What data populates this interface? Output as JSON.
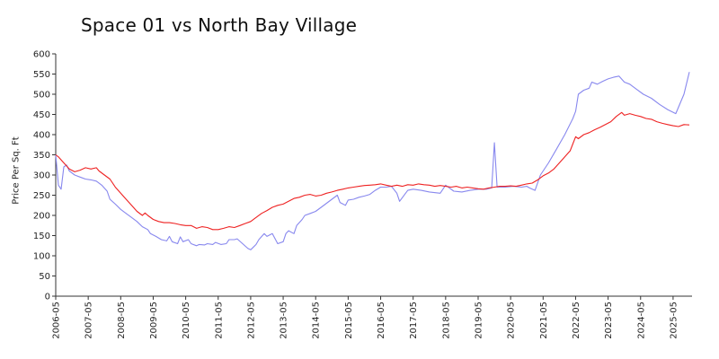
{
  "chart_data": {
    "type": "line",
    "title": "Space 01 vs North Bay Village",
    "xlabel": "",
    "ylabel": "Price Per Sq. Ft",
    "ylim": [
      0,
      600
    ],
    "yticks": [
      0,
      50,
      100,
      150,
      200,
      250,
      300,
      350,
      400,
      450,
      500,
      550,
      600
    ],
    "xlim": [
      "2006-05",
      "2025-12"
    ],
    "xticks": [
      "2006-05",
      "2007-05",
      "2008-05",
      "2009-05",
      "2010-05",
      "2011-05",
      "2012-05",
      "2013-05",
      "2014-05",
      "2015-05",
      "2016-05",
      "2017-05",
      "2018-05",
      "2019-05",
      "2020-05",
      "2021-05",
      "2022-05",
      "2023-05",
      "2024-05",
      "2025-05"
    ],
    "grid": false,
    "series": [
      {
        "color": "#8888ee",
        "points": [
          [
            "2006-05",
            350
          ],
          [
            "2006-06",
            275
          ],
          [
            "2006-07",
            265
          ],
          [
            "2006-08",
            320
          ],
          [
            "2006-09",
            325
          ],
          [
            "2006-10",
            310
          ],
          [
            "2006-12",
            300
          ],
          [
            "2007-02",
            295
          ],
          [
            "2007-04",
            290
          ],
          [
            "2007-06",
            288
          ],
          [
            "2007-08",
            285
          ],
          [
            "2007-10",
            275
          ],
          [
            "2007-12",
            260
          ],
          [
            "2008-01",
            240
          ],
          [
            "2008-03",
            228
          ],
          [
            "2008-05",
            215
          ],
          [
            "2008-07",
            205
          ],
          [
            "2008-09",
            195
          ],
          [
            "2008-11",
            185
          ],
          [
            "2009-01",
            172
          ],
          [
            "2009-03",
            165
          ],
          [
            "2009-04",
            155
          ],
          [
            "2009-06",
            148
          ],
          [
            "2009-08",
            140
          ],
          [
            "2009-10",
            137
          ],
          [
            "2009-11",
            148
          ],
          [
            "2009-12",
            135
          ],
          [
            "2010-02",
            130
          ],
          [
            "2010-03",
            147
          ],
          [
            "2010-04",
            135
          ],
          [
            "2010-06",
            140
          ],
          [
            "2010-07",
            130
          ],
          [
            "2010-09",
            125
          ],
          [
            "2010-10",
            128
          ],
          [
            "2010-12",
            127
          ],
          [
            "2011-01",
            130
          ],
          [
            "2011-03",
            128
          ],
          [
            "2011-04",
            133
          ],
          [
            "2011-06",
            128
          ],
          [
            "2011-08",
            130
          ],
          [
            "2011-09",
            140
          ],
          [
            "2011-11",
            140
          ],
          [
            "2011-12",
            142
          ],
          [
            "2012-02",
            130
          ],
          [
            "2012-04",
            118
          ],
          [
            "2012-05",
            115
          ],
          [
            "2012-07",
            128
          ],
          [
            "2012-08",
            140
          ],
          [
            "2012-10",
            155
          ],
          [
            "2012-11",
            148
          ],
          [
            "2013-01",
            155
          ],
          [
            "2013-03",
            130
          ],
          [
            "2013-05",
            135
          ],
          [
            "2013-06",
            155
          ],
          [
            "2013-07",
            162
          ],
          [
            "2013-09",
            155
          ],
          [
            "2013-10",
            175
          ],
          [
            "2013-12",
            190
          ],
          [
            "2014-01",
            200
          ],
          [
            "2014-03",
            205
          ],
          [
            "2014-05",
            210
          ],
          [
            "2014-07",
            220
          ],
          [
            "2014-09",
            230
          ],
          [
            "2014-11",
            240
          ],
          [
            "2015-01",
            250
          ],
          [
            "2015-02",
            232
          ],
          [
            "2015-04",
            225
          ],
          [
            "2015-05",
            238
          ],
          [
            "2015-07",
            240
          ],
          [
            "2015-09",
            245
          ],
          [
            "2015-11",
            248
          ],
          [
            "2016-01",
            252
          ],
          [
            "2016-03",
            262
          ],
          [
            "2016-05",
            270
          ],
          [
            "2016-07",
            270
          ],
          [
            "2016-09",
            272
          ],
          [
            "2016-11",
            255
          ],
          [
            "2016-12",
            235
          ],
          [
            "2017-03",
            262
          ],
          [
            "2017-05",
            265
          ],
          [
            "2017-08",
            262
          ],
          [
            "2017-11",
            258
          ],
          [
            "2018-03",
            255
          ],
          [
            "2018-05",
            275
          ],
          [
            "2018-08",
            260
          ],
          [
            "2018-11",
            258
          ],
          [
            "2019-02",
            262
          ],
          [
            "2019-05",
            265
          ],
          [
            "2019-08",
            265
          ],
          [
            "2019-10",
            268
          ],
          [
            "2019-11",
            380
          ],
          [
            "2019-12",
            270
          ],
          [
            "2020-03",
            270
          ],
          [
            "2020-06",
            272
          ],
          [
            "2020-09",
            270
          ],
          [
            "2020-11",
            272
          ],
          [
            "2020-12",
            268
          ],
          [
            "2021-02",
            262
          ],
          [
            "2021-04",
            300
          ],
          [
            "2021-07",
            330
          ],
          [
            "2021-10",
            365
          ],
          [
            "2022-01",
            400
          ],
          [
            "2022-04",
            440
          ],
          [
            "2022-05",
            458
          ],
          [
            "2022-06",
            500
          ],
          [
            "2022-08",
            510
          ],
          [
            "2022-10",
            515
          ],
          [
            "2022-11",
            530
          ],
          [
            "2023-01",
            525
          ],
          [
            "2023-03",
            532
          ],
          [
            "2023-05",
            538
          ],
          [
            "2023-07",
            542
          ],
          [
            "2023-09",
            545
          ],
          [
            "2023-11",
            530
          ],
          [
            "2024-01",
            525
          ],
          [
            "2024-03",
            515
          ],
          [
            "2024-06",
            500
          ],
          [
            "2024-09",
            490
          ],
          [
            "2024-12",
            475
          ],
          [
            "2025-03",
            462
          ],
          [
            "2025-06",
            452
          ],
          [
            "2025-09",
            500
          ],
          [
            "2025-11",
            555
          ]
        ]
      },
      {
        "color": "#ee2222",
        "points": [
          [
            "2006-05",
            350
          ],
          [
            "2006-06",
            345
          ],
          [
            "2006-08",
            330
          ],
          [
            "2006-10",
            315
          ],
          [
            "2006-12",
            308
          ],
          [
            "2007-02",
            312
          ],
          [
            "2007-04",
            318
          ],
          [
            "2007-06",
            315
          ],
          [
            "2007-08",
            318
          ],
          [
            "2007-09",
            310
          ],
          [
            "2007-11",
            300
          ],
          [
            "2008-01",
            290
          ],
          [
            "2008-03",
            270
          ],
          [
            "2008-05",
            255
          ],
          [
            "2008-07",
            240
          ],
          [
            "2008-09",
            225
          ],
          [
            "2008-11",
            210
          ],
          [
            "2009-01",
            200
          ],
          [
            "2009-02",
            206
          ],
          [
            "2009-03",
            200
          ],
          [
            "2009-05",
            190
          ],
          [
            "2009-07",
            185
          ],
          [
            "2009-09",
            182
          ],
          [
            "2009-11",
            182
          ],
          [
            "2010-01",
            180
          ],
          [
            "2010-03",
            177
          ],
          [
            "2010-05",
            175
          ],
          [
            "2010-07",
            175
          ],
          [
            "2010-09",
            168
          ],
          [
            "2010-11",
            172
          ],
          [
            "2011-01",
            170
          ],
          [
            "2011-03",
            165
          ],
          [
            "2011-05",
            165
          ],
          [
            "2011-07",
            168
          ],
          [
            "2011-09",
            172
          ],
          [
            "2011-11",
            170
          ],
          [
            "2012-01",
            175
          ],
          [
            "2012-03",
            180
          ],
          [
            "2012-05",
            185
          ],
          [
            "2012-07",
            195
          ],
          [
            "2012-09",
            205
          ],
          [
            "2012-11",
            212
          ],
          [
            "2013-01",
            220
          ],
          [
            "2013-03",
            225
          ],
          [
            "2013-05",
            228
          ],
          [
            "2013-07",
            235
          ],
          [
            "2013-09",
            242
          ],
          [
            "2013-11",
            245
          ],
          [
            "2014-01",
            250
          ],
          [
            "2014-03",
            252
          ],
          [
            "2014-05",
            248
          ],
          [
            "2014-07",
            250
          ],
          [
            "2014-09",
            255
          ],
          [
            "2014-11",
            258
          ],
          [
            "2015-01",
            262
          ],
          [
            "2015-03",
            265
          ],
          [
            "2015-05",
            268
          ],
          [
            "2015-07",
            270
          ],
          [
            "2015-09",
            272
          ],
          [
            "2015-11",
            274
          ],
          [
            "2016-01",
            275
          ],
          [
            "2016-03",
            276
          ],
          [
            "2016-05",
            278
          ],
          [
            "2016-07",
            275
          ],
          [
            "2016-09",
            272
          ],
          [
            "2016-11",
            275
          ],
          [
            "2017-01",
            272
          ],
          [
            "2017-03",
            276
          ],
          [
            "2017-05",
            275
          ],
          [
            "2017-07",
            278
          ],
          [
            "2017-09",
            276
          ],
          [
            "2017-11",
            275
          ],
          [
            "2018-01",
            272
          ],
          [
            "2018-03",
            274
          ],
          [
            "2018-05",
            272
          ],
          [
            "2018-07",
            270
          ],
          [
            "2018-09",
            272
          ],
          [
            "2018-11",
            268
          ],
          [
            "2019-01",
            270
          ],
          [
            "2019-03",
            268
          ],
          [
            "2019-05",
            266
          ],
          [
            "2019-07",
            265
          ],
          [
            "2019-09",
            268
          ],
          [
            "2019-11",
            270
          ],
          [
            "2020-01",
            272
          ],
          [
            "2020-03",
            272
          ],
          [
            "2020-05",
            273
          ],
          [
            "2020-07",
            272
          ],
          [
            "2020-09",
            275
          ],
          [
            "2020-11",
            278
          ],
          [
            "2021-01",
            280
          ],
          [
            "2021-03",
            288
          ],
          [
            "2021-05",
            298
          ],
          [
            "2021-07",
            305
          ],
          [
            "2021-09",
            315
          ],
          [
            "2021-11",
            330
          ],
          [
            "2022-01",
            345
          ],
          [
            "2022-03",
            360
          ],
          [
            "2022-05",
            395
          ],
          [
            "2022-06",
            390
          ],
          [
            "2022-08",
            400
          ],
          [
            "2022-10",
            405
          ],
          [
            "2022-12",
            412
          ],
          [
            "2023-02",
            418
          ],
          [
            "2023-04",
            425
          ],
          [
            "2023-06",
            432
          ],
          [
            "2023-08",
            445
          ],
          [
            "2023-10",
            455
          ],
          [
            "2023-11",
            448
          ],
          [
            "2024-01",
            452
          ],
          [
            "2024-03",
            448
          ],
          [
            "2024-05",
            445
          ],
          [
            "2024-07",
            440
          ],
          [
            "2024-09",
            438
          ],
          [
            "2024-11",
            432
          ],
          [
            "2025-01",
            428
          ],
          [
            "2025-03",
            425
          ],
          [
            "2025-05",
            422
          ],
          [
            "2025-07",
            420
          ],
          [
            "2025-09",
            425
          ],
          [
            "2025-11",
            424
          ]
        ]
      }
    ]
  }
}
